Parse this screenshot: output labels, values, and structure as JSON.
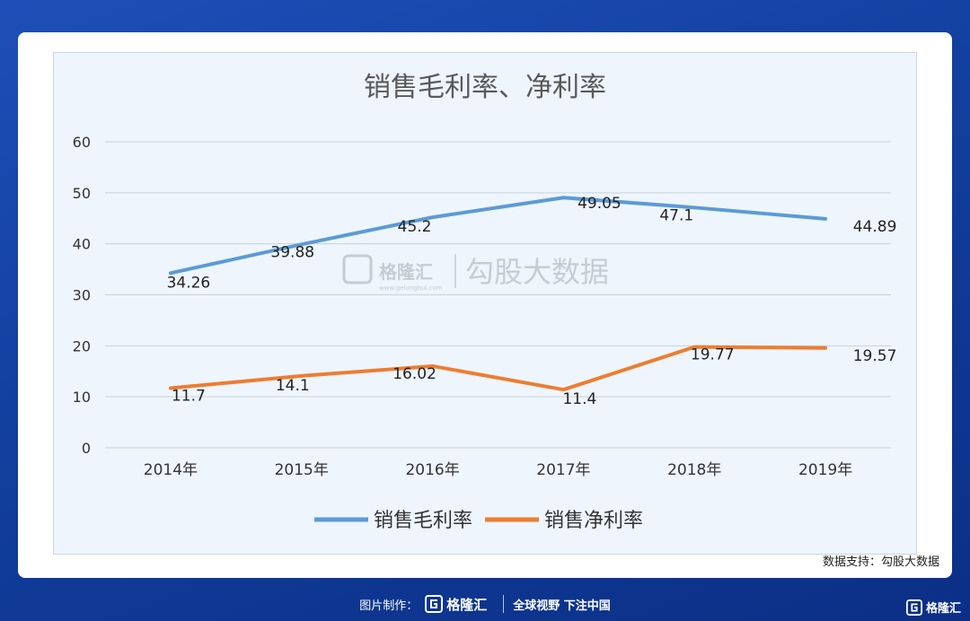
{
  "chart_data": {
    "type": "line",
    "title": "销售毛利率、净利率",
    "categories": [
      "2014年",
      "2015年",
      "2016年",
      "2017年",
      "2018年",
      "2019年"
    ],
    "ylim": [
      0,
      60
    ],
    "yticks": [
      0,
      10,
      20,
      30,
      40,
      50,
      60
    ],
    "grid": true,
    "legend_position": "bottom",
    "series": [
      {
        "name": "销售毛利率",
        "color": "#5b9bd5",
        "values": [
          34.26,
          39.88,
          45.2,
          49.05,
          47.1,
          44.89
        ],
        "labels": [
          "34.26",
          "39.88",
          "45.2",
          "49.05",
          "47.1",
          "44.89"
        ]
      },
      {
        "name": "销售净利率",
        "color": "#ed7d31",
        "values": [
          11.7,
          14.1,
          16.02,
          11.4,
          19.77,
          19.57
        ],
        "labels": [
          "11.7",
          "14.1",
          "16.02",
          "11.4",
          "19.77",
          "19.57"
        ]
      }
    ]
  },
  "watermark": {
    "brand": "格隆汇",
    "site": "www.gelonghui.com",
    "text": "勾股大数据"
  },
  "source_note": "数据支持：勾股大数据",
  "footer": {
    "prefix": "图片制作：",
    "brand": "格隆汇",
    "slogan": "全球视野 下注中国"
  },
  "corner_brand": "格隆汇"
}
